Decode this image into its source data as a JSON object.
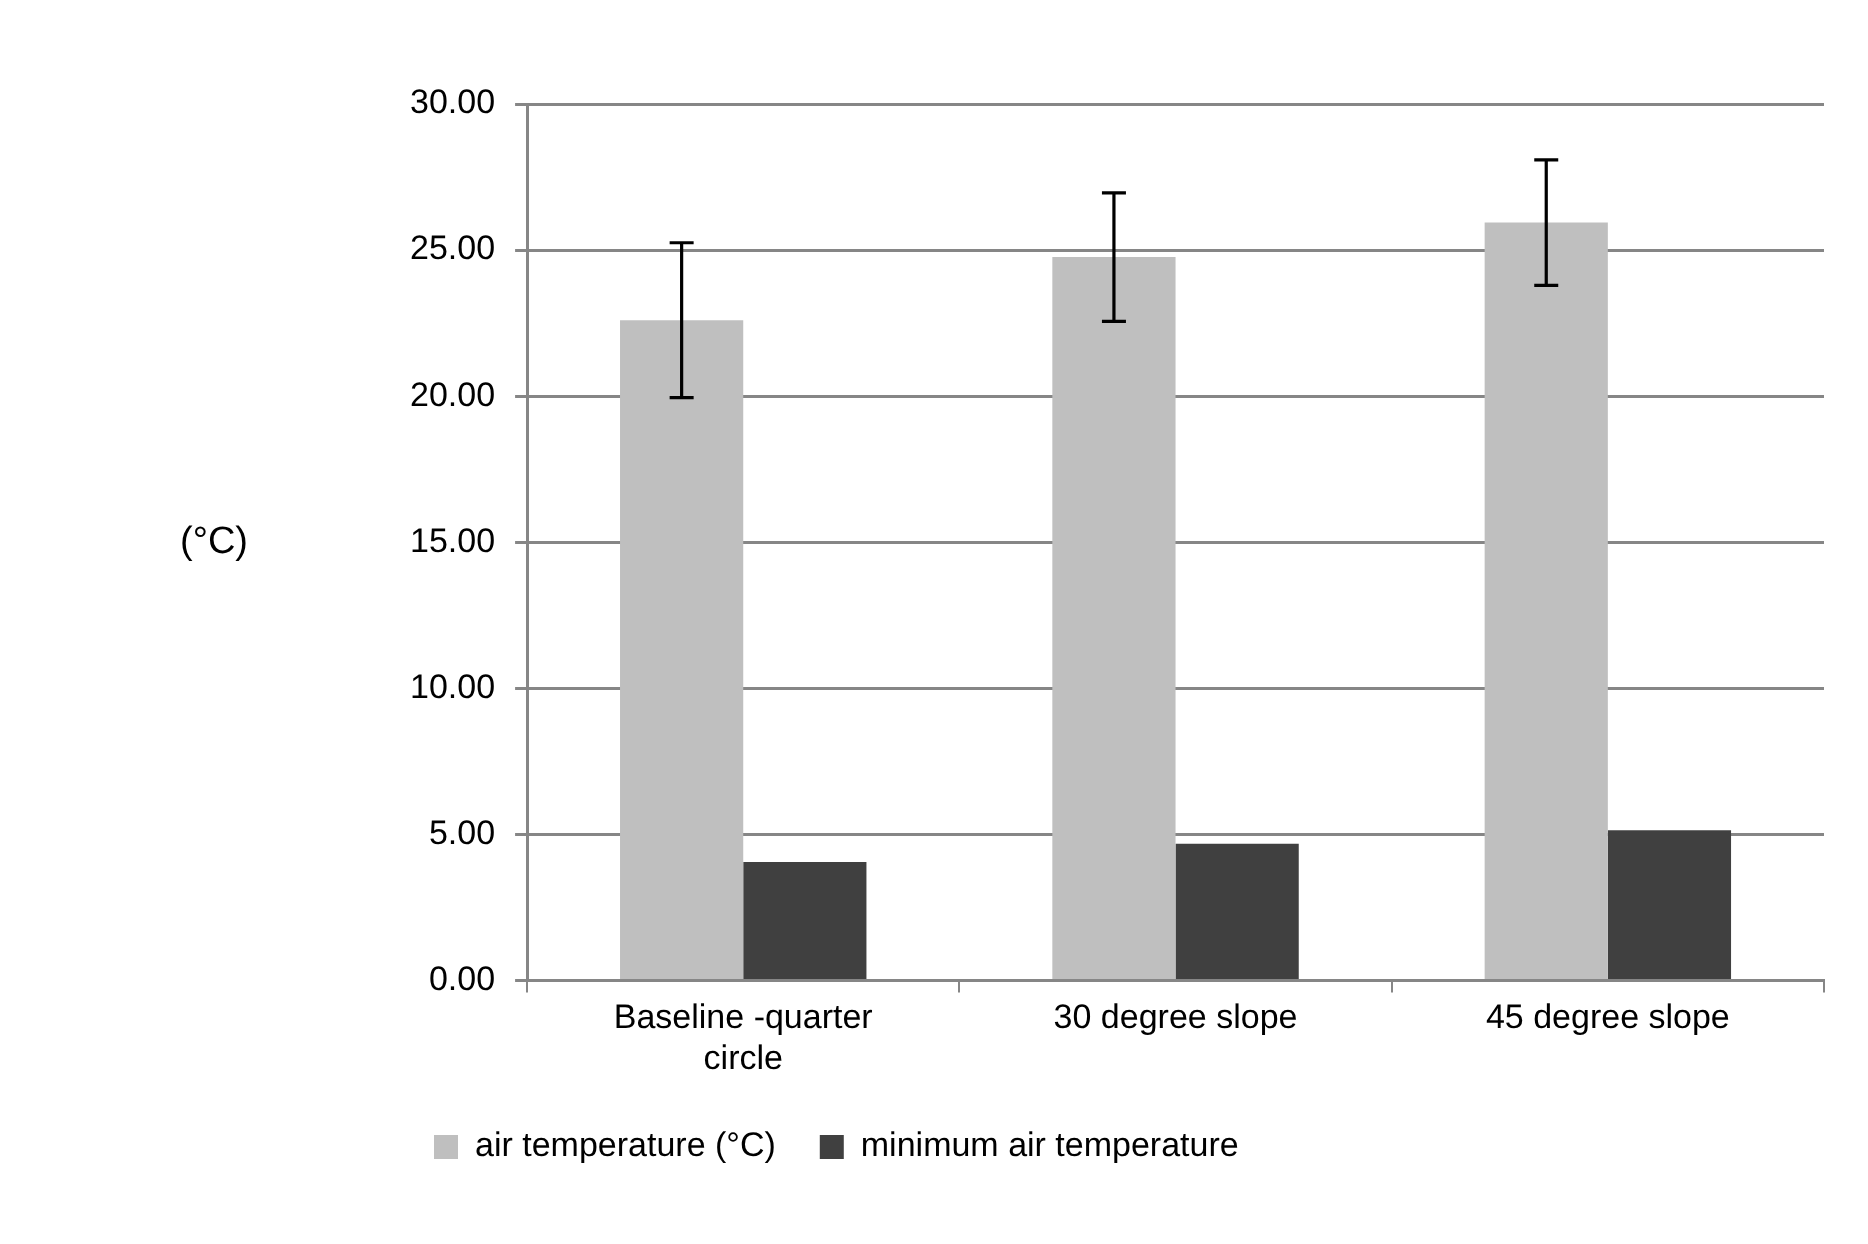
{
  "chart_data": {
    "type": "bar",
    "ylabel": "(°C)",
    "categories": [
      "Baseline -quarter circle",
      "30 degree slope",
      "45 degree slope"
    ],
    "series": [
      {
        "name": "air temperature (°C)",
        "color": "#bfbfbf",
        "values": [
          22.6,
          24.76,
          25.94
        ],
        "errors": [
          2.65,
          2.2,
          2.15
        ]
      },
      {
        "name": "minimum air temperature",
        "color": "#404040",
        "values": [
          4.05,
          4.68,
          5.14
        ]
      }
    ],
    "ylim": [
      0,
      30
    ],
    "yticks": [
      {
        "value": 0,
        "label": "0.00"
      },
      {
        "value": 5,
        "label": "5.00"
      },
      {
        "value": 10,
        "label": "10.00"
      },
      {
        "value": 15,
        "label": "15.00"
      },
      {
        "value": 20,
        "label": "20.00"
      },
      {
        "value": 25,
        "label": "25.00"
      },
      {
        "value": 30,
        "label": "30.00"
      }
    ],
    "grid": "y",
    "legend": "bottom"
  }
}
